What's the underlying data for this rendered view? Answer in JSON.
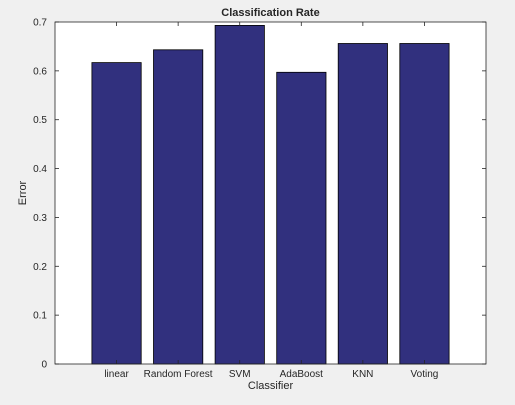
{
  "chart_data": {
    "type": "bar",
    "title": "Classification Rate",
    "xlabel": "Classifier",
    "ylabel": "Error",
    "categories": [
      "linear",
      "Random Forest",
      "SVM",
      "AdaBoost",
      "KNN",
      "Voting"
    ],
    "values": [
      0.617,
      0.643,
      0.693,
      0.597,
      0.656,
      0.656
    ],
    "ylim": [
      0,
      0.7
    ],
    "yticks": [
      "0",
      "0.1",
      "0.2",
      "0.3",
      "0.4",
      "0.5",
      "0.6",
      "0.7"
    ],
    "grid": false,
    "colors": {
      "bar": "#31307e",
      "axes_bg": "#ffffff",
      "figure_bg": "#f0f0f0"
    }
  }
}
